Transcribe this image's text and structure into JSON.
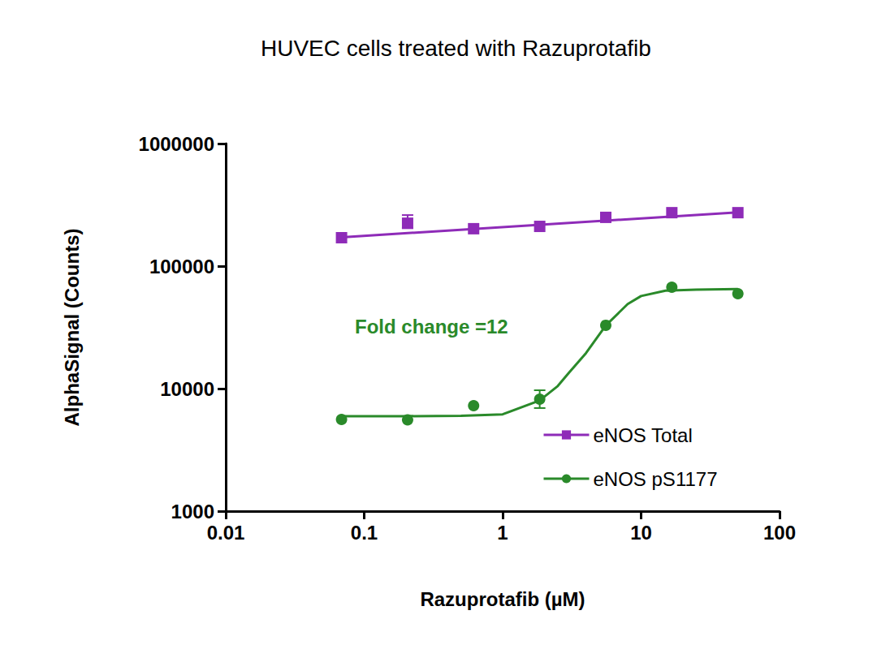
{
  "chart_data": {
    "type": "scatter",
    "title": "HUVEC cells treated with Razuprotafib",
    "x_label": "Razuprotafib (µM)",
    "y_label": "AlphaSignal (Counts)",
    "log": true,
    "grid": false,
    "legend": "lower right",
    "xlim": [
      0.01,
      100
    ],
    "xticks": [
      0.01,
      0.1,
      1,
      10,
      100
    ],
    "ylim": [
      1000,
      1000000
    ],
    "yticks": [
      1000,
      10000,
      100000,
      1000000
    ],
    "annotations": [
      {
        "text": "Fold change =12",
        "color": "#2a8a2a"
      }
    ],
    "series": [
      {
        "name": "eNOS Total",
        "color": "#8e2bb8",
        "marker": "square",
        "x": [
          0.0686,
          0.2058,
          0.617,
          1.852,
          5.556,
          16.67,
          50
        ],
        "values": [
          170600,
          224000,
          202000,
          211000,
          250000,
          273000,
          273000
        ],
        "errors": [
          null,
          [
            204000,
            261000
          ],
          null,
          null,
          null,
          null,
          null
        ],
        "fit": {
          "x": [
            0.0686,
            50
          ],
          "values": [
            172000,
            275000
          ]
        }
      },
      {
        "name": "eNOS pS1177",
        "color": "#2a8a2a",
        "marker": "circle",
        "x": [
          0.0686,
          0.2058,
          0.617,
          1.852,
          5.556,
          16.67,
          50
        ],
        "values": [
          5600,
          5560,
          7260,
          8200,
          32900,
          67300,
          59600
        ],
        "errors": [
          null,
          null,
          null,
          [
            6940,
            9700
          ],
          null,
          null,
          null
        ],
        "fit": {
          "x": [
            0.0686,
            0.2,
            0.5,
            1,
            1.85,
            2.5,
            3,
            4,
            5.56,
            8,
            10,
            15,
            25,
            50
          ],
          "values": [
            5960,
            5960,
            6000,
            6170,
            8000,
            10500,
            13400,
            19500,
            32800,
            49000,
            57000,
            63000,
            64200,
            65000
          ]
        }
      }
    ]
  }
}
